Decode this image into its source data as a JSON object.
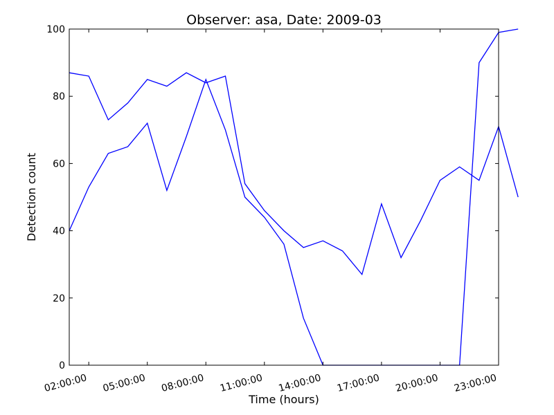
{
  "chart_data": {
    "type": "line",
    "title": "Observer: asa, Date: 2009-03",
    "xlabel": "Time (hours)",
    "ylabel": "Detection count",
    "xlim": [
      1,
      23
    ],
    "ylim": [
      0,
      100
    ],
    "x_ticks": [
      {
        "hour": 2,
        "label": "02:00:00"
      },
      {
        "hour": 5,
        "label": "05:00:00"
      },
      {
        "hour": 8,
        "label": "08:00:00"
      },
      {
        "hour": 11,
        "label": "11:00:00"
      },
      {
        "hour": 14,
        "label": "14:00:00"
      },
      {
        "hour": 17,
        "label": "17:00:00"
      },
      {
        "hour": 20,
        "label": "20:00:00"
      },
      {
        "hour": 23,
        "label": "23:00:00"
      }
    ],
    "y_ticks": [
      0,
      20,
      40,
      60,
      80,
      100
    ],
    "grid": false,
    "series_color": "#0000ff",
    "series": [
      {
        "x": [
          1,
          2,
          3,
          4,
          5,
          6,
          7,
          8,
          9,
          10,
          11,
          12,
          13,
          14,
          15,
          16,
          17,
          18,
          19,
          20,
          21,
          22,
          23,
          24
        ],
        "values": [
          87,
          86,
          73,
          78,
          85,
          83,
          87,
          84,
          86,
          54,
          46,
          40,
          35,
          37,
          34,
          27,
          48,
          32,
          43,
          55,
          59,
          55,
          71,
          50
        ]
      },
      {
        "x": [
          1,
          2,
          3,
          4,
          5,
          6,
          7,
          8,
          9,
          10,
          11,
          12,
          13,
          14,
          15,
          16,
          17,
          18,
          19,
          20,
          21,
          22,
          23,
          24
        ],
        "values": [
          40,
          53,
          63,
          65,
          72,
          52,
          68,
          85,
          70,
          50,
          44,
          36,
          14,
          0,
          0,
          0,
          0,
          0,
          0,
          0,
          0,
          90,
          99,
          100
        ]
      }
    ]
  }
}
